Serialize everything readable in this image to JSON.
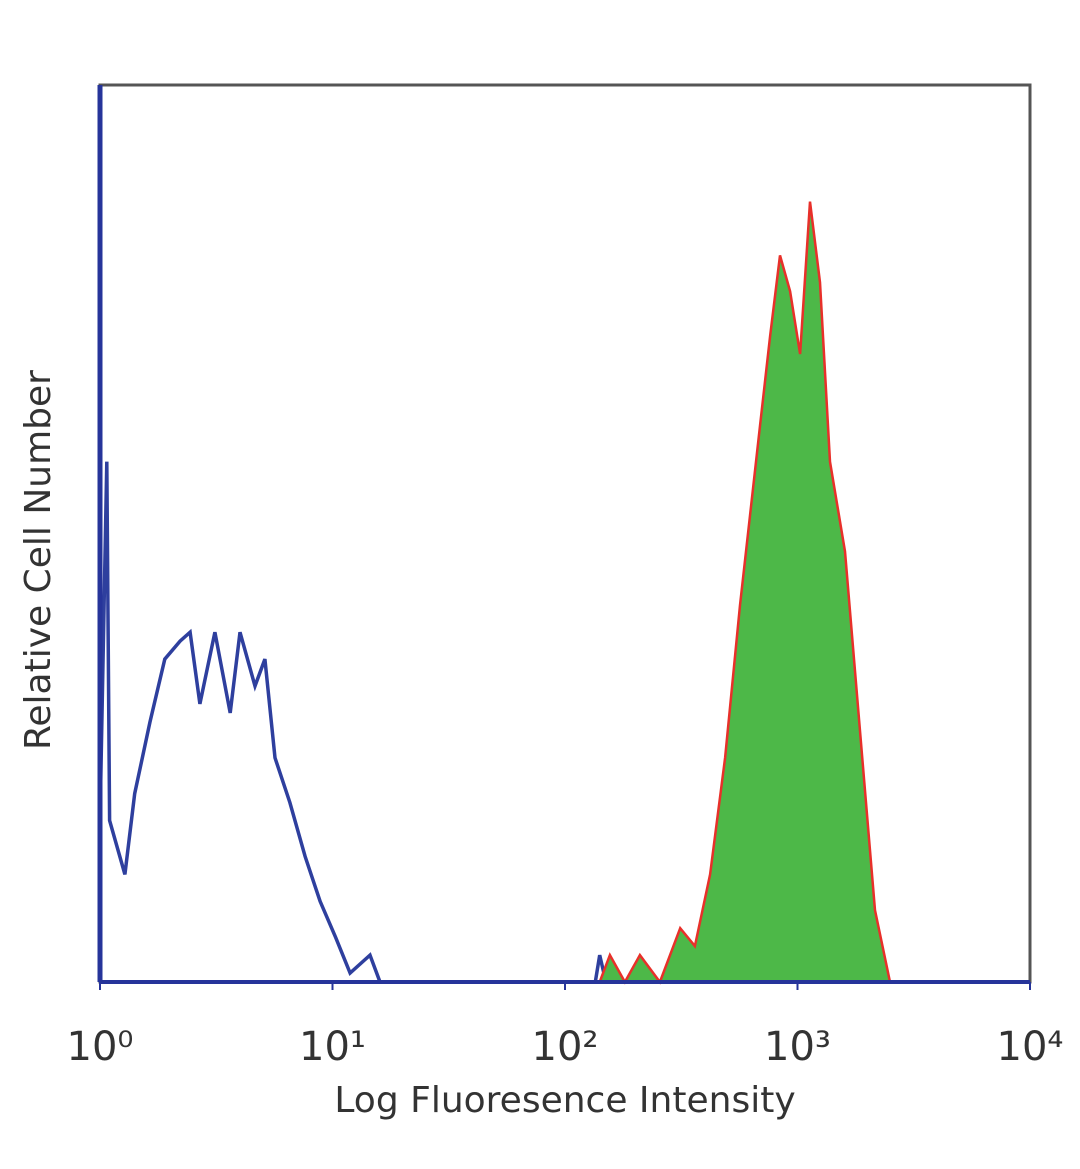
{
  "chart_data": {
    "type": "histogram-overlay",
    "x_label": "Log Fluoresence Intensity",
    "y_label": "Relative Cell Number",
    "xscale": "log",
    "xlim": [
      1,
      10000
    ],
    "ylim": [
      0,
      100
    ],
    "xticks": [
      {
        "value": 1,
        "label": "10⁰"
      },
      {
        "value": 10,
        "label": "10¹"
      },
      {
        "value": 100,
        "label": "10²"
      },
      {
        "value": 1000,
        "label": "10³"
      },
      {
        "value": 10000,
        "label": "10⁴"
      }
    ],
    "axis_color": "#26349a",
    "frame_color": "#555555",
    "series": [
      {
        "color": "#2e3f9e",
        "filled": false,
        "x": [
          1.0,
          1.07,
          1.1,
          1.28,
          1.41,
          1.64,
          1.9,
          2.21,
          2.44,
          2.69,
          3.12,
          3.63,
          4.0,
          4.64,
          5.12,
          5.66,
          6.56,
          7.62,
          8.84,
          10.3,
          11.9,
          14.5,
          16.0,
          135,
          141,
          150
        ],
        "values": [
          18,
          58,
          18,
          12,
          21,
          29,
          36,
          38,
          39,
          31,
          39,
          30,
          39,
          33,
          36,
          25,
          20,
          14,
          9,
          5,
          1,
          3,
          0,
          0,
          3,
          0
        ]
      },
      {
        "color": "#4db848",
        "edge_color": "#e8302a",
        "filled": true,
        "x": [
          141,
          156,
          181,
          210,
          256,
          313,
          362,
          421,
          488,
          566,
          625,
          690,
          762,
          841,
          929,
          1026,
          1132,
          1250,
          1380,
          1600,
          1857,
          2154,
          2500
        ],
        "values": [
          0,
          3,
          0,
          3,
          0,
          6,
          4,
          12,
          25,
          42,
          52,
          62,
          72,
          81,
          77,
          70,
          87,
          78,
          58,
          48,
          28,
          8,
          0
        ]
      }
    ]
  }
}
